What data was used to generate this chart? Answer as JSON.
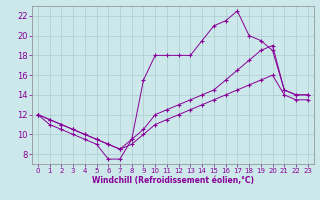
{
  "xlabel": "Windchill (Refroidissement éolien,°C)",
  "bg_color": "#cce8ea",
  "grid_color": "#aacccc",
  "line_color": "#880099",
  "x_min": 0,
  "x_max": 23,
  "y_min": 7,
  "y_max": 23,
  "y_ticks": [
    8,
    10,
    12,
    14,
    16,
    18,
    20,
    22
  ],
  "x_ticks": [
    0,
    1,
    2,
    3,
    4,
    5,
    6,
    7,
    8,
    9,
    10,
    11,
    12,
    13,
    14,
    15,
    16,
    17,
    18,
    19,
    20,
    21,
    22,
    23
  ],
  "line1_x": [
    0,
    1,
    2,
    3,
    4,
    5,
    6,
    7,
    8,
    9,
    10,
    11,
    12,
    13,
    14,
    15,
    16,
    17,
    18,
    19,
    20,
    21,
    22,
    23
  ],
  "line1_y": [
    12.0,
    11.0,
    10.5,
    10.0,
    9.5,
    9.0,
    7.5,
    7.5,
    9.5,
    15.5,
    18.0,
    18.0,
    18.0,
    18.0,
    19.5,
    21.0,
    21.5,
    22.5,
    20.0,
    19.5,
    18.5,
    14.5,
    14.0,
    14.0
  ],
  "line2_x": [
    0,
    1,
    2,
    3,
    4,
    5,
    6,
    7,
    8,
    9,
    10,
    11,
    12,
    13,
    14,
    15,
    16,
    17,
    18,
    19,
    20,
    21,
    22,
    23
  ],
  "line2_y": [
    12.0,
    11.5,
    11.0,
    10.5,
    10.0,
    9.5,
    9.0,
    8.5,
    9.5,
    10.5,
    12.0,
    12.5,
    13.0,
    13.5,
    14.0,
    14.5,
    15.5,
    16.5,
    17.5,
    18.5,
    19.0,
    14.5,
    14.0,
    14.0
  ],
  "line3_x": [
    0,
    1,
    2,
    3,
    4,
    5,
    6,
    7,
    8,
    9,
    10,
    11,
    12,
    13,
    14,
    15,
    16,
    17,
    18,
    19,
    20,
    21,
    22,
    23
  ],
  "line3_y": [
    12.0,
    11.5,
    11.0,
    10.5,
    10.0,
    9.5,
    9.0,
    8.5,
    9.0,
    10.0,
    11.0,
    11.5,
    12.0,
    12.5,
    13.0,
    13.5,
    14.0,
    14.5,
    15.0,
    15.5,
    16.0,
    14.0,
    13.5,
    13.5
  ]
}
